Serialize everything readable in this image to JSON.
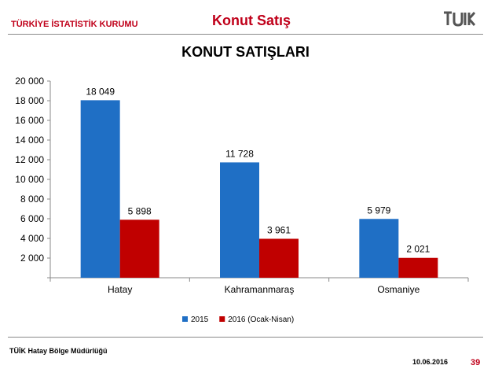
{
  "header": {
    "org": "TÜRKİYE İSTATİSTİK KURUMU",
    "title": "Konut Satış",
    "logo_text": "TÜİK"
  },
  "chart_data": {
    "type": "bar",
    "title": "KONUT SATIŞLARI",
    "categories": [
      "Hatay",
      "Kahramanmaraş",
      "Osmaniye"
    ],
    "series": [
      {
        "name": "2015",
        "values": [
          18049,
          11728,
          5979
        ],
        "labels": [
          "18 049",
          "11 728",
          "5 979"
        ],
        "color": "#1f6fc5"
      },
      {
        "name": "2016 (Ocak-Nisan)",
        "values": [
          5898,
          3961,
          2021
        ],
        "labels": [
          "5 898",
          "3 961",
          "2 021"
        ],
        "color": "#c00000"
      }
    ],
    "ylim": [
      0,
      20000
    ],
    "yticks": [
      0,
      2000,
      4000,
      6000,
      8000,
      10000,
      12000,
      14000,
      16000,
      18000,
      20000
    ],
    "ytick_labels": [
      "",
      "2 000",
      "4 000",
      "6 000",
      "8 000",
      "10 000",
      "12 000",
      "14 000",
      "16 000",
      "18 000",
      "20 000"
    ],
    "legend_position": "bottom",
    "grid": false
  },
  "footer": {
    "office": "TÜİK Hatay Bölge Müdürlüğü",
    "date": "10.06.2016",
    "page": "39"
  }
}
